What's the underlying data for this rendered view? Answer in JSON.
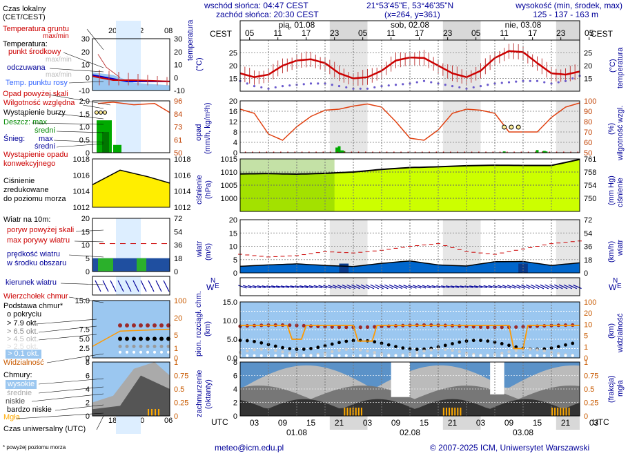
{
  "header": {
    "sunrise": "wschód słońca: 04:47 CEST",
    "sunset": "zachód słońca: 20:30 CEST",
    "coords": "21°53'45\"E, 53°46'35\"N",
    "grid": "(x=264,  y=361)",
    "altitude_title": "wysokość (min, środek, max)",
    "altitude_values": "125 - 137 - 163 m",
    "tz_left": "CEST",
    "tz_right": "CEST",
    "utc_left": "UTC",
    "utc_right": "UTC"
  },
  "top_axis": {
    "days": [
      "pią, 01.08",
      "sob, 02.08",
      "nie, 03.08"
    ],
    "hours": [
      "05",
      "11",
      "17",
      "23",
      "05",
      "11",
      "17",
      "23",
      "05",
      "11",
      "17",
      "23",
      "05"
    ]
  },
  "bottom_axis": {
    "hours": [
      "03",
      "09",
      "15",
      "21",
      "03",
      "09",
      "15",
      "21",
      "03",
      "09",
      "15",
      "21",
      "03"
    ],
    "dates": [
      "01.08",
      "02.08",
      "03.08"
    ]
  },
  "legend": {
    "local_time": "Czas lokalny",
    "local_time_sub": "(CET/CEST)",
    "local_hours": [
      "20",
      "02",
      "08"
    ],
    "ground_temp": "Temperatura gruntu",
    "ground_temp_sub": "max/min",
    "temperature": "Temperatura:",
    "mid_point": "punkt środkowy",
    "max_min": "max/min",
    "felt": "odczuwana",
    "max_min2": "max/min",
    "dew_point": "Temp. punktu rosy",
    "precip_above": "Opad powyżej skali",
    "humidity": "Wilgotność względna",
    "storm": "Wystąpienie burzy",
    "rain": "Deszcz: max",
    "rain_mean": "średni",
    "snow": "Śnieg:",
    "snow_max": "max",
    "snow_mean": "średni",
    "precip_occ1": "Wystąpienie opadu",
    "precip_occ2": "konwekcyjnego",
    "pressure1": "Ciśnienie",
    "pressure2": "zredukowane",
    "pressure3": "do poziomu morza",
    "wind_title": "Wiatr na 10m:",
    "gust_above": "poryw powyżej skali",
    "max_gust": "max porywy wiatru",
    "wind_speed1": "prędkość wiatru",
    "wind_speed2": "w środku obszaru",
    "wind_dir": "kierunek wiatru",
    "cloud_top": "Wierzchołek chmur",
    "cloud_base1": "Podstawa chmur*",
    "cloud_base2": "o pokryciu",
    "okt79": "> 7.9 okt.",
    "okt65": "> 6.5 okt.",
    "okt45": "> 4.5 okt.",
    "okt25": "> 2.5 okt.",
    "okt01": "> 0.1 okt.",
    "visibility": "Widzialność",
    "clouds": "Chmury:",
    "high": "wysokie",
    "mid": "średnie",
    "low": "niskie",
    "very_low": "bardzo niskie",
    "fog": "Mgła",
    "utc_time": "Czas uniwersalny (UTC)",
    "utc_hours": [
      "18",
      "00",
      "06"
    ],
    "footnote": "* powyżej poziomu morza"
  },
  "axis_labels": {
    "temp_left": "temperatura",
    "temp_left_unit": "(°C)",
    "temp_right": "temperatura",
    "temp_right_unit": "(°C)",
    "precip_left": "opad",
    "precip_left_unit": "(mm/h, kg/m²h)",
    "precip_right": "wilgotność wzgl.",
    "precip_right_unit": "(%)",
    "press_left": "ciśnienie",
    "press_left_unit": "(hPa)",
    "press_right": "ciśnienie",
    "press_right_unit": "(mm Hg)",
    "wind_left": "wiatr",
    "wind_left_unit": "(m/s)",
    "wind_right": "wiatr",
    "wind_right_unit": "(km/h)",
    "cloud_left1": "pion. rozciągł. chm.",
    "cloud_left2": "(km)",
    "cloud_right": "widzialność",
    "cloud_right_unit": "(km)",
    "cover_left1": "zachmurzenie",
    "cover_left2": "(oktanty)",
    "cover_right1": "(frakcja)",
    "cover_right2": "mgła"
  },
  "compass": {
    "w": "W",
    "n": "N",
    "e": "E",
    "s": "S"
  },
  "footer": {
    "email": "meteo@icm.edu.pl",
    "copyright": "© 2007-2025 ICM, Uniwersytet Warszawski"
  },
  "colors": {
    "night": "#e6e6e6",
    "temp_red": "#cc0000",
    "dew": "#6a5acd",
    "humidity": "#e04010",
    "rain": "#00aa00",
    "pressure": "#ccff00",
    "wind": "#0066cc",
    "sky": "#9bc7f0",
    "visibility": "#ff9900"
  },
  "chart_data": [
    {
      "type": "line",
      "panel": "temperature",
      "x_hours_utc": [
        0,
        3,
        6,
        9,
        12,
        15,
        18,
        21,
        24,
        27,
        30,
        33,
        36,
        39,
        42,
        45,
        48,
        51,
        54,
        57,
        60,
        63,
        66,
        69,
        72
      ],
      "series": [
        {
          "name": "punkt środkowy",
          "values": [
            17,
            15.5,
            16.5,
            20,
            22,
            22.5,
            21,
            17,
            15,
            15.5,
            18,
            22,
            23.2,
            23,
            20,
            17,
            15.5,
            18,
            23,
            25.7,
            25.3,
            21,
            17,
            16.5,
            17.7
          ]
        },
        {
          "name": "Temp. punktu rosy",
          "values": [
            14,
            12,
            11,
            12,
            12.5,
            13,
            13,
            12,
            11,
            11,
            12,
            12.5,
            13,
            14,
            13,
            12,
            11,
            12,
            13,
            13.5,
            14,
            14,
            13,
            14,
            16
          ]
        }
      ],
      "ylim": [
        10,
        30
      ],
      "ticks_left": [
        15,
        20,
        25
      ],
      "ticks_right": [
        15,
        20,
        25
      ]
    },
    {
      "type": "bar",
      "panel": "precipitation",
      "rain_bars": [
        {
          "x": 20.5,
          "value": 2
        },
        {
          "x": 21,
          "value": 2.5
        },
        {
          "x": 22,
          "value": 0.6
        },
        {
          "x": 56,
          "value": 0.5
        },
        {
          "x": 63,
          "value": 1
        },
        {
          "x": 64.5,
          "value": 0.7
        }
      ],
      "humidity_series": {
        "name": "Wilgotność względna",
        "x_hours_utc": [
          0,
          3,
          6,
          9,
          12,
          15,
          18,
          21,
          24,
          27,
          30,
          33,
          36,
          39,
          42,
          45,
          48,
          51,
          54,
          57,
          60,
          63,
          66,
          69,
          72
        ],
        "values": [
          92,
          88,
          68,
          62,
          75,
          85,
          91,
          92,
          95,
          97,
          94,
          80,
          64,
          62,
          72,
          88,
          92,
          91,
          88,
          70,
          70,
          70,
          84,
          94,
          98
        ]
      },
      "ylim": [
        0,
        20
      ],
      "ticks_left": [
        0,
        4,
        8,
        12,
        16,
        20
      ],
      "ticks_right": [
        50,
        60,
        70,
        80,
        90,
        100
      ]
    },
    {
      "type": "area",
      "panel": "pressure",
      "x_hours_utc": [
        0,
        6,
        12,
        18,
        24,
        30,
        36,
        42,
        48,
        54,
        60,
        66,
        72
      ],
      "values": [
        1009.3,
        1009.4,
        1009.2,
        1009.5,
        1010,
        1011,
        1011.7,
        1012,
        1012.4,
        1012.6,
        1012.5,
        1012.5,
        1014.8
      ],
      "ylim": [
        995,
        1015
      ],
      "ticks_left": [
        1000,
        1005,
        1010,
        1015
      ],
      "ticks_right": [
        750,
        754,
        758,
        761
      ]
    },
    {
      "type": "area",
      "panel": "wind",
      "x_hours_utc": [
        0,
        6,
        12,
        18,
        24,
        30,
        36,
        42,
        48,
        54,
        60,
        66,
        72
      ],
      "speed": [
        2.5,
        3,
        3.4,
        2.8,
        2.4,
        3.6,
        4.5,
        3,
        2.6,
        4.2,
        4.3,
        2.8,
        3.8
      ],
      "gusts": [
        7,
        6,
        6.5,
        8,
        7.5,
        8.5,
        10,
        11,
        8,
        7,
        9,
        11,
        12
      ],
      "ylim": [
        0,
        20
      ],
      "ticks_left": [
        0,
        5,
        10,
        15,
        20
      ],
      "ticks_right": [
        0,
        18,
        36,
        54,
        72
      ]
    },
    {
      "type": "scatter",
      "panel": "cloud_base",
      "ylim": [
        0,
        15
      ],
      "ticks_left": [
        0,
        2.5,
        5,
        7.5,
        10,
        12.5,
        15
      ],
      "ticks_right": [
        0,
        1,
        5,
        10,
        20,
        100
      ],
      "cloud_top_km": 8.5
    },
    {
      "type": "area",
      "panel": "cloud_cover",
      "ylim": [
        0,
        8
      ],
      "ticks_left": [
        0,
        2,
        4,
        6,
        8
      ],
      "ticks_right": [
        0,
        0.25,
        0.5,
        0.75,
        1
      ]
    }
  ]
}
